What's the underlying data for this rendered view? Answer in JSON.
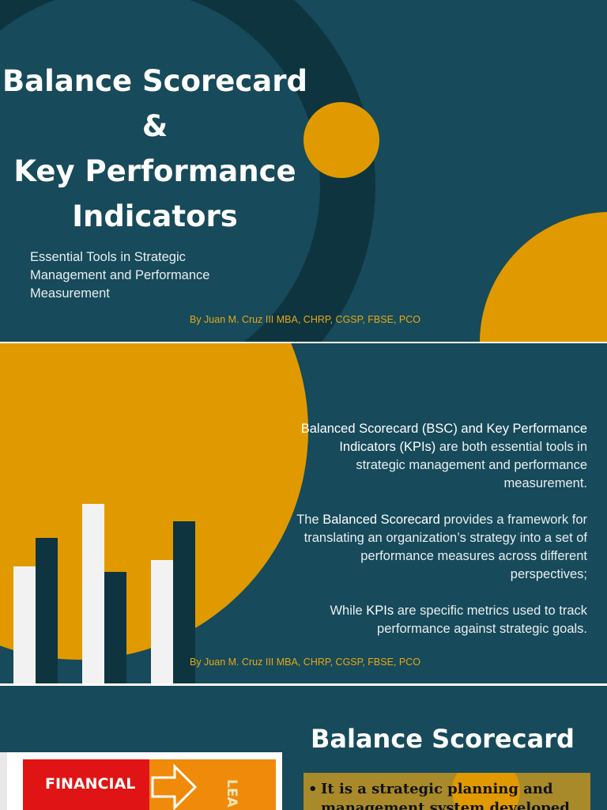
{
  "slide1": {
    "title_line1": "Balance Scorecard",
    "title_line2": "&",
    "title_line3": "Key Performance",
    "title_line4": "Indicators",
    "subtitle": "Essential Tools in Strategic Management and Performance Measurement",
    "byline": "By Juan M. Cruz III MBA, CHRP, CGSP, FBSE, PCO"
  },
  "slide2": {
    "p1_highlight": "Balanced Scorecard (BSC) and Key Performance Indicators (KPIs)",
    "p1_rest": " are both essential tools in strategic management and performance measurement.",
    "p2_pre": "The ",
    "p2_highlight": "Balanced Scorecard",
    "p2_rest": " provides a framework for translating an organization’s strategy into a set of performance measures across different perspectives;",
    "p3_pre": "While ",
    "p3_highlight": "KPIs",
    "p3_rest": " are specific metrics used to track performance against strategic goals.",
    "byline": "By Juan M. Cruz III MBA, CHRP, CGSP, FBSE, PCO"
  },
  "slide3": {
    "title": "Balance Scorecard",
    "financial_label": "FINANCIAL",
    "vertical_label": "LEA & GR",
    "bullet1": "It is a strategic planning and management system developed by"
  },
  "colors": {
    "background": "#174a5a",
    "dark_accent": "#0e3440",
    "gold": "#e09a00",
    "byline": "#e6a818"
  }
}
